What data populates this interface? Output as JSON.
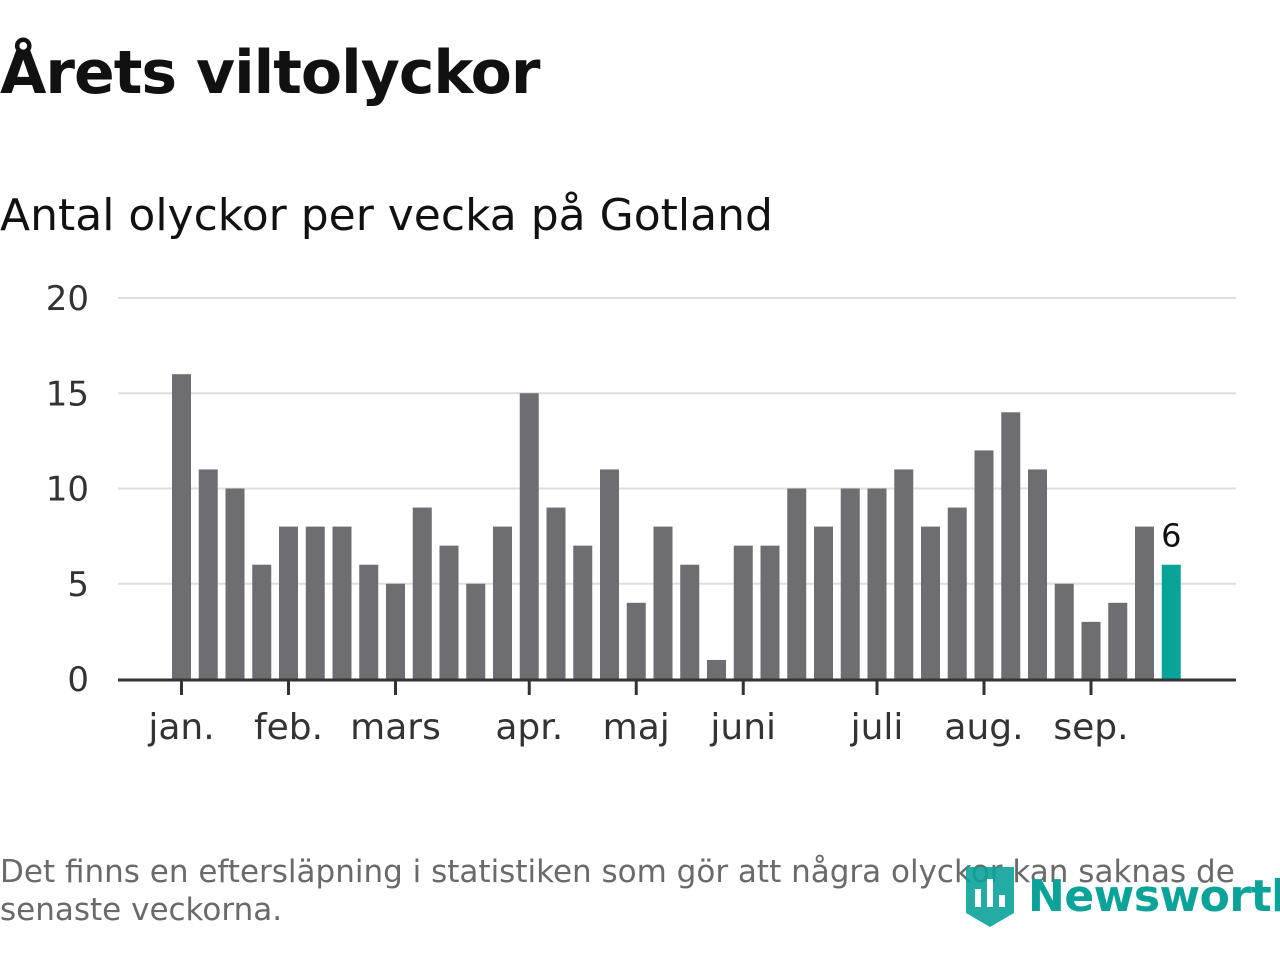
{
  "title": "Årets viltolyckor",
  "subtitle": "Antal olyckor per vecka på Gotland",
  "footnote": "Det finns en eftersläpning i statistiken som gör att några olyckor kan saknas de senaste veckorna.",
  "logo": {
    "text": "Newsworthy",
    "icon": "newsworthy-logo-icon"
  },
  "colors": {
    "bar": "#6e6d72",
    "highlight": "#0aa39a",
    "grid": "#dedede",
    "axis": "#333333",
    "tick_text": "#333333",
    "footnote": "#6a6a6a"
  },
  "chart_data": {
    "type": "bar",
    "title": "Antal olyckor per vecka på Gotland",
    "xlabel": "",
    "ylabel": "",
    "ylim": [
      0,
      20
    ],
    "yticks": [
      0,
      5,
      10,
      15,
      20
    ],
    "grid": true,
    "week_values": [
      16,
      11,
      10,
      6,
      8,
      8,
      8,
      6,
      5,
      9,
      7,
      5,
      8,
      15,
      9,
      7,
      11,
      4,
      8,
      6,
      1,
      7,
      7,
      10,
      8,
      10,
      10,
      11,
      8,
      9,
      12,
      14,
      11,
      5,
      3,
      4,
      8,
      6
    ],
    "highlight_index": 37,
    "highlight_label": "6",
    "month_ticks": [
      {
        "label": "jan.",
        "week_index": 0
      },
      {
        "label": "feb.",
        "week_index": 4
      },
      {
        "label": "mars",
        "week_index": 8
      },
      {
        "label": "apr.",
        "week_index": 13
      },
      {
        "label": "maj",
        "week_index": 17
      },
      {
        "label": "juni",
        "week_index": 21
      },
      {
        "label": "juli",
        "week_index": 26
      },
      {
        "label": "aug.",
        "week_index": 30
      },
      {
        "label": "sep.",
        "week_index": 34
      }
    ]
  }
}
